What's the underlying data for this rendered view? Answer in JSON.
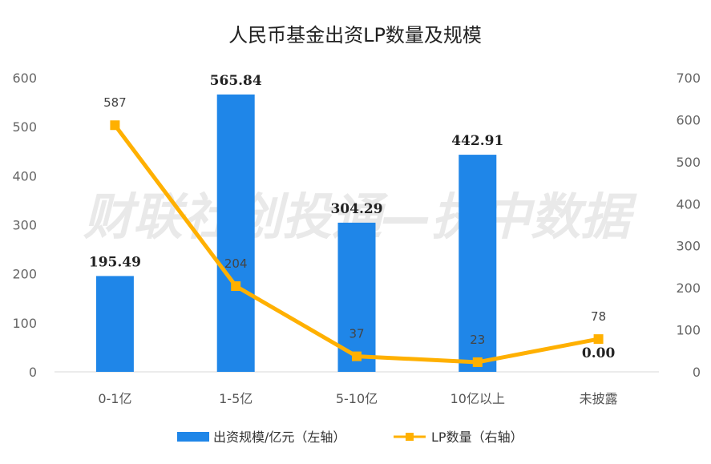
{
  "chart_data": {
    "type": "bar",
    "title": "人民币基金出资LP数量及规模",
    "watermark": "财联社创投通—执中数据",
    "categories": [
      "0-1亿",
      "1-5亿",
      "5-10亿",
      "10亿以上",
      "未披露"
    ],
    "series": [
      {
        "name": "出资规模/亿元（左轴）",
        "type": "bar",
        "axis": "left",
        "color": "#1f86e8",
        "values": [
          195.49,
          565.84,
          304.29,
          442.91,
          0.0
        ],
        "labels": [
          "195.49",
          "565.84",
          "304.29",
          "442.91",
          "0.00"
        ]
      },
      {
        "name": "LP数量（右轴）",
        "type": "line",
        "axis": "right",
        "color": "#ffb000",
        "values": [
          587,
          204,
          37,
          23,
          78
        ],
        "labels": [
          "587",
          "204",
          "37",
          "23",
          "78"
        ]
      }
    ],
    "y_left": {
      "ylim": [
        0,
        600
      ],
      "ticks": [
        "0",
        "100",
        "200",
        "300",
        "400",
        "500",
        "600"
      ]
    },
    "y_right": {
      "ylim": [
        0,
        700
      ],
      "ticks": [
        "0",
        "100",
        "200",
        "300",
        "400",
        "500",
        "600",
        "700"
      ]
    },
    "legend_position": "bottom",
    "grid": false
  }
}
